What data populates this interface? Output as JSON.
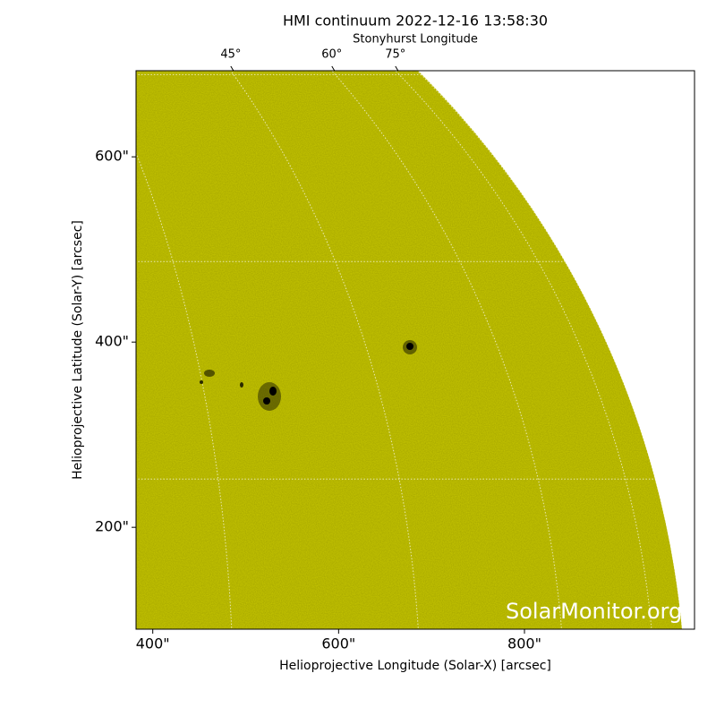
{
  "chart_data": {
    "type": "image",
    "title": "HMI continuum 2022-12-16 13:58:30",
    "top_axis_label": "Stonyhurst Longitude",
    "xlabel": "Helioprojective Longitude (Solar-X) [arcsec]",
    "ylabel": "Helioprojective Latitude (Solar-Y) [arcsec]",
    "xlim": [
      382,
      983
    ],
    "ylim": [
      90,
      693
    ],
    "xticks": [
      {
        "value": 400,
        "label": "400\""
      },
      {
        "value": 600,
        "label": "600\""
      },
      {
        "value": 800,
        "label": "800\""
      }
    ],
    "yticks": [
      {
        "value": 200,
        "label": "200\""
      },
      {
        "value": 400,
        "label": "400\""
      },
      {
        "value": 600,
        "label": "600\""
      }
    ],
    "top_ticks": [
      {
        "value": 45,
        "label": "45°"
      },
      {
        "value": 60,
        "label": "60°"
      },
      {
        "value": 75,
        "label": "75°"
      }
    ],
    "color": "#c8c800",
    "watermark": "SolarMonitor.org"
  }
}
